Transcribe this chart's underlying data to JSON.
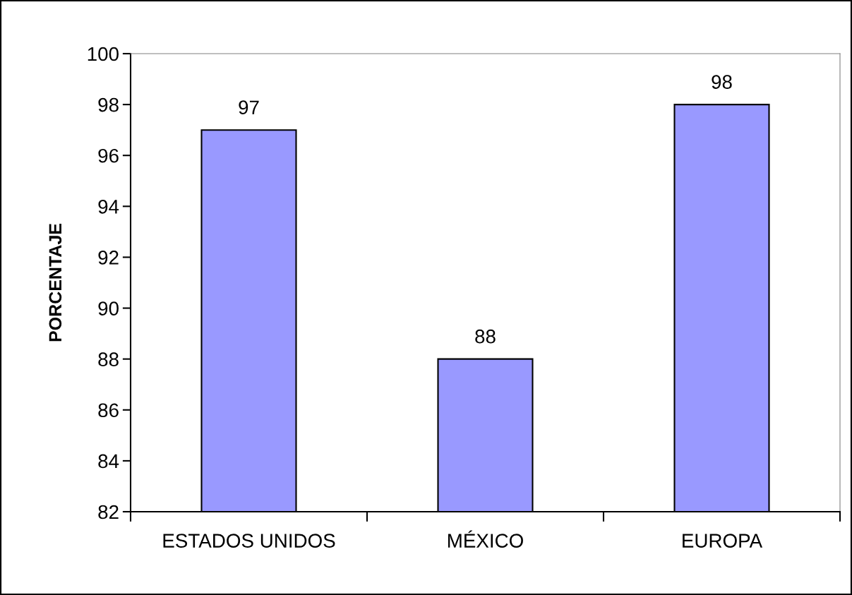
{
  "chart_data": {
    "type": "bar",
    "ylabel": "PORCENTAJE",
    "categories": [
      "ESTADOS UNIDOS",
      "MÉXICO",
      "EUROPA"
    ],
    "values": [
      97,
      88,
      98
    ],
    "color": "#9999ff",
    "ylim": [
      82,
      100
    ],
    "yticks": [
      82,
      84,
      86,
      88,
      90,
      92,
      94,
      96,
      98,
      100
    ],
    "data_labels": true,
    "grid": false,
    "legend": false
  }
}
